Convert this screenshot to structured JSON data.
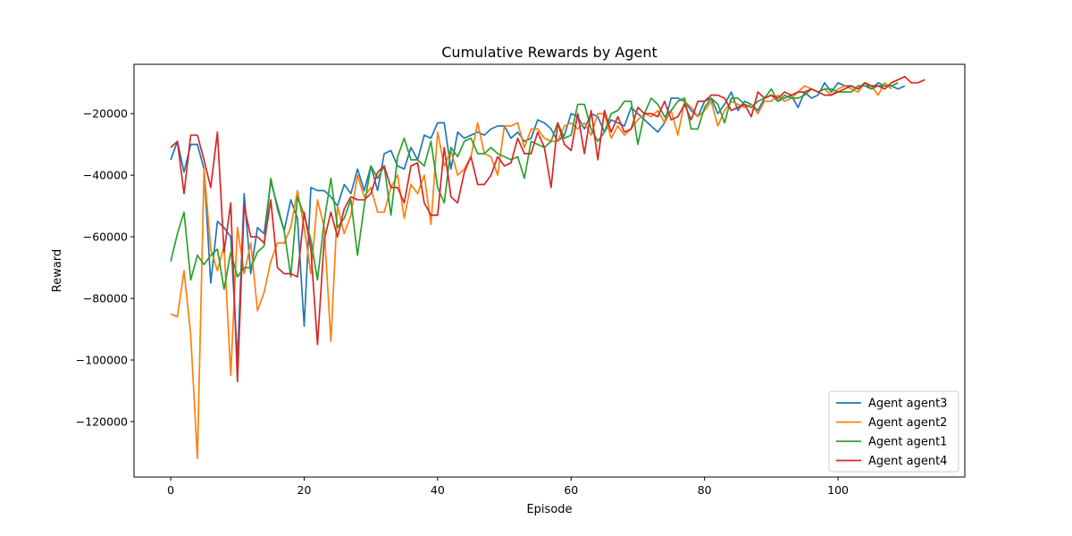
{
  "chart_data": {
    "type": "line",
    "title": "Cumulative Rewards by Agent",
    "xlabel": "Episode",
    "ylabel": "Reward",
    "xlim": [
      -5.5,
      119
    ],
    "ylim": [
      -138000,
      -4000
    ],
    "xticks": [
      0,
      20,
      40,
      60,
      80,
      100
    ],
    "yticks": [
      -120000,
      -100000,
      -80000,
      -60000,
      -40000,
      -20000
    ],
    "ytick_labels": [
      "−120000",
      "−100000",
      "−80000",
      "−60000",
      "−40000",
      "−20000"
    ],
    "grid": false,
    "legend_position": "lower-right",
    "series": [
      {
        "name": "Agent agent3",
        "color": "#1f77b4",
        "values": [
          -35000,
          -29000,
          -39000,
          -30000,
          -30000,
          -38000,
          -75000,
          -55000,
          -57000,
          -60000,
          -100000,
          -46000,
          -72000,
          -57000,
          -59000,
          -42000,
          -50000,
          -58000,
          -48000,
          -54000,
          -89000,
          -44000,
          -45000,
          -45000,
          -47000,
          -50000,
          -43000,
          -46000,
          -38000,
          -45000,
          -37000,
          -45000,
          -33000,
          -32000,
          -37000,
          -38000,
          -31000,
          -35000,
          -27000,
          -28000,
          -23000,
          -23000,
          -38000,
          -26000,
          -28000,
          -27000,
          -26000,
          -27000,
          -25000,
          -24000,
          -24000,
          -28000,
          -26000,
          -29000,
          -28000,
          -22000,
          -23000,
          -25000,
          -29000,
          -27000,
          -20000,
          -21000,
          -25000,
          -20000,
          -21000,
          -26000,
          -22000,
          -23000,
          -24000,
          -18000,
          -20000,
          -22000,
          -24000,
          -26000,
          -23000,
          -15000,
          -15000,
          -16000,
          -19000,
          -21000,
          -16000,
          -15000,
          -20000,
          -17000,
          -13000,
          -19000,
          -16000,
          -17000,
          -19000,
          -15000,
          -14000,
          -16000,
          -15000,
          -14000,
          -18000,
          -13000,
          -15000,
          -14000,
          -10000,
          -13000,
          -10000,
          -11000,
          -11000,
          -12000,
          -10000,
          -12000,
          -10000,
          -11000,
          -11000,
          -12000,
          -11000
        ]
      },
      {
        "name": "Agent agent2",
        "color": "#ff7f0e",
        "values": [
          -85000,
          -86000,
          -71000,
          -92000,
          -132000,
          -38000,
          -64000,
          -71000,
          -63000,
          -105000,
          -57000,
          -72000,
          -62000,
          -84000,
          -78000,
          -68000,
          -62000,
          -62000,
          -57000,
          -45000,
          -57000,
          -72000,
          -48000,
          -57000,
          -94000,
          -50000,
          -59000,
          -53000,
          -40000,
          -47000,
          -44000,
          -52000,
          -52000,
          -44000,
          -40000,
          -54000,
          -43000,
          -46000,
          -40000,
          -56000,
          -26000,
          -37000,
          -32000,
          -40000,
          -38000,
          -34000,
          -23000,
          -33000,
          -34000,
          -40000,
          -24000,
          -24000,
          -23000,
          -31000,
          -25000,
          -25000,
          -28000,
          -29000,
          -29000,
          -24000,
          -23000,
          -25000,
          -23000,
          -27000,
          -20000,
          -20000,
          -28000,
          -24000,
          -27000,
          -25000,
          -22000,
          -20000,
          -21000,
          -19000,
          -23000,
          -19000,
          -27000,
          -16000,
          -18000,
          -21000,
          -19000,
          -16000,
          -24000,
          -19000,
          -16000,
          -17000,
          -18000,
          -17000,
          -20000,
          -16000,
          -16000,
          -14000,
          -16000,
          -15000,
          -13000,
          -11000,
          -12000,
          -13000,
          -12000,
          -14000,
          -12000,
          -11000,
          -12000,
          -13000,
          -10000,
          -11000,
          -14000,
          -10000,
          -12000
        ]
      },
      {
        "name": "Agent agent1",
        "color": "#2ca02c",
        "values": [
          -68000,
          -59000,
          -52000,
          -74000,
          -66000,
          -69000,
          -66000,
          -64000,
          -77000,
          -65000,
          -73000,
          -70000,
          -70000,
          -65000,
          -63000,
          -41000,
          -51000,
          -58000,
          -73000,
          -47000,
          -53000,
          -61000,
          -74000,
          -55000,
          -41000,
          -57000,
          -54000,
          -48000,
          -66000,
          -50000,
          -37000,
          -41000,
          -37000,
          -53000,
          -34000,
          -28000,
          -35000,
          -35000,
          -37000,
          -29000,
          -44000,
          -49000,
          -31000,
          -34000,
          -29000,
          -28000,
          -33000,
          -33000,
          -31000,
          -33000,
          -34000,
          -35000,
          -34000,
          -41000,
          -29000,
          -30000,
          -31000,
          -29000,
          -23000,
          -28000,
          -27000,
          -17000,
          -17000,
          -25000,
          -29000,
          -26000,
          -20000,
          -19000,
          -16000,
          -16000,
          -30000,
          -20000,
          -15000,
          -17000,
          -21000,
          -19000,
          -16000,
          -15000,
          -25000,
          -25000,
          -18000,
          -15000,
          -17000,
          -23000,
          -15000,
          -15000,
          -17000,
          -18000,
          -16000,
          -15000,
          -12000,
          -16000,
          -14000,
          -15000,
          -15000,
          -14000,
          -12000,
          -13000,
          -12000,
          -12000,
          -13000,
          -13000,
          -13000,
          -11000,
          -11000,
          -12000,
          -11000,
          -11000,
          -11000,
          -10000
        ]
      },
      {
        "name": "Agent agent4",
        "color": "#d62728",
        "values": [
          -31000,
          -29000,
          -46000,
          -27000,
          -27000,
          -35000,
          -44000,
          -26000,
          -65000,
          -49000,
          -107000,
          -50000,
          -60000,
          -60000,
          -62000,
          -48000,
          -70000,
          -72000,
          -72000,
          -73000,
          -52000,
          -64000,
          -95000,
          -61000,
          -52000,
          -60000,
          -51000,
          -47000,
          -48000,
          -48000,
          -46000,
          -39000,
          -37000,
          -44000,
          -44000,
          -49000,
          -37000,
          -36000,
          -49000,
          -53000,
          -53000,
          -31000,
          -47000,
          -49000,
          -39000,
          -34000,
          -43000,
          -43000,
          -40000,
          -34000,
          -37000,
          -36000,
          -28000,
          -33000,
          -33000,
          -26000,
          -31000,
          -44000,
          -23000,
          -30000,
          -32000,
          -20000,
          -33000,
          -19000,
          -35000,
          -19000,
          -26000,
          -21000,
          -26000,
          -25000,
          -18000,
          -20000,
          -20000,
          -21000,
          -16000,
          -22000,
          -21000,
          -17000,
          -22000,
          -16000,
          -16000,
          -14000,
          -14000,
          -15000,
          -19000,
          -18000,
          -17000,
          -21000,
          -13000,
          -15000,
          -14000,
          -15000,
          -13000,
          -14000,
          -13000,
          -13000,
          -12000,
          -13000,
          -14000,
          -14000,
          -13000,
          -12000,
          -11000,
          -12000,
          -10000,
          -11000,
          -11000,
          -12000,
          -10000,
          -9000,
          -8000,
          -10000,
          -10000,
          -9000
        ]
      }
    ]
  }
}
